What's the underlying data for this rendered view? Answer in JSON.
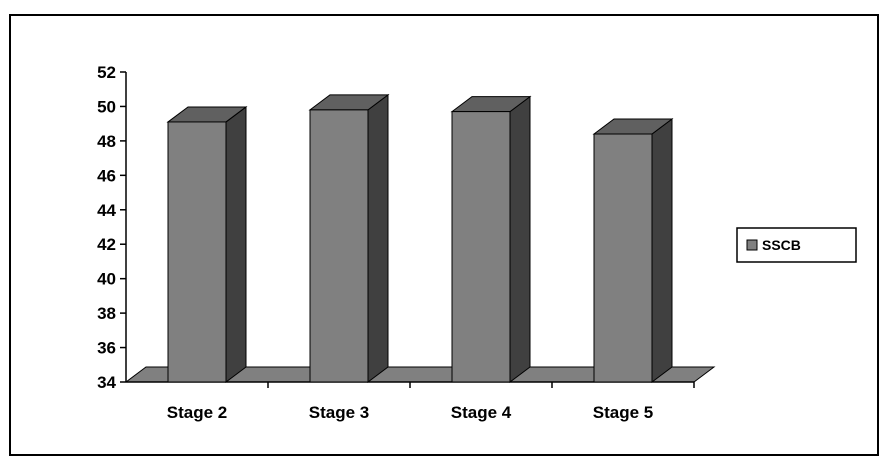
{
  "chart_data": {
    "type": "bar",
    "categories": [
      "Stage 2",
      "Stage 3",
      "Stage 4",
      "Stage 5"
    ],
    "series": [
      {
        "name": "SSCB",
        "values": [
          49.1,
          49.8,
          49.7,
          48.4
        ]
      }
    ],
    "ylim": [
      34,
      52
    ],
    "yticks": [
      34,
      36,
      38,
      40,
      42,
      44,
      46,
      48,
      50,
      52
    ],
    "style": "3d-column",
    "grid": false,
    "legend": "right",
    "colors": {
      "bar_front": "#808080",
      "bar_top": "#606060",
      "bar_side": "#404040",
      "floor": "#808080",
      "axis": "#000000"
    }
  }
}
